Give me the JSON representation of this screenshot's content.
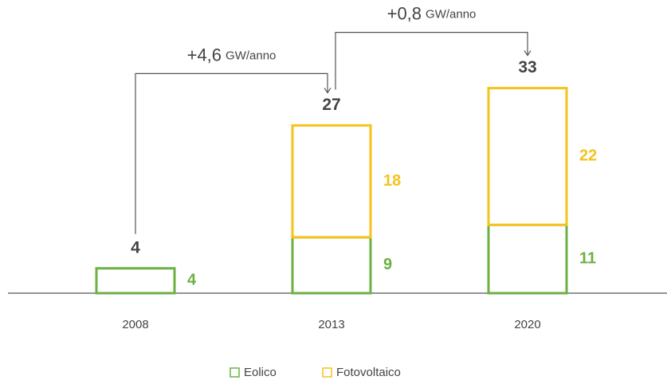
{
  "chart_data": {
    "type": "bar",
    "stacked": true,
    "categories": [
      "2008",
      "2013",
      "2020"
    ],
    "series": [
      {
        "name": "Eolico",
        "color": "#6cb044",
        "values": [
          4,
          9,
          11
        ]
      },
      {
        "name": "Fotovoltaico",
        "color": "#f6c21c",
        "values": [
          null,
          18,
          22
        ]
      }
    ],
    "totals": [
      4,
      27,
      33
    ],
    "annotations": [
      {
        "text": "+4,6",
        "unit": "GW/anno",
        "from": 0,
        "to": 1
      },
      {
        "text": "+0,8",
        "unit": "GW/anno",
        "from": 1,
        "to": 2
      }
    ],
    "ylim": [
      0,
      45
    ],
    "legend": "bottom"
  }
}
